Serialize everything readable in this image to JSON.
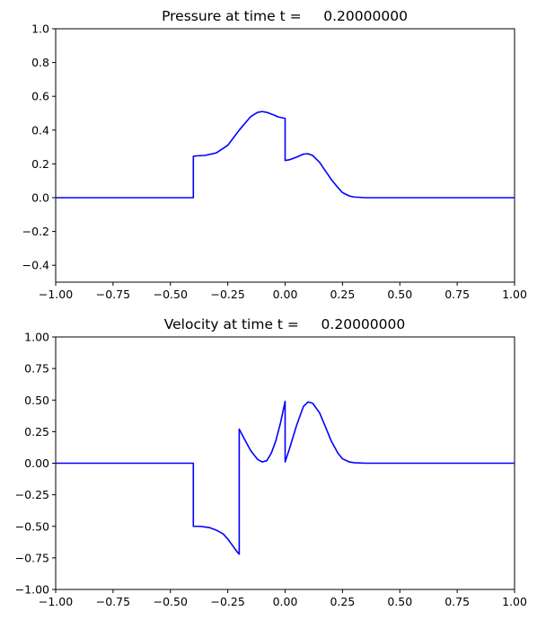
{
  "chart_data": [
    {
      "type": "line",
      "title": "Pressure at time t =     0.20000000",
      "xlabel": "",
      "ylabel": "",
      "xlim": [
        -1.0,
        1.0
      ],
      "ylim": [
        -0.5,
        1.0
      ],
      "xticks": [
        -1.0,
        -0.75,
        -0.5,
        -0.25,
        0.0,
        0.25,
        0.5,
        0.75,
        1.0
      ],
      "xtick_labels": [
        "−1.00",
        "−0.75",
        "−0.50",
        "−0.25",
        "0.00",
        "0.25",
        "0.50",
        "0.75",
        "1.00"
      ],
      "yticks": [
        -0.4,
        -0.2,
        0.0,
        0.2,
        0.4,
        0.6,
        0.8,
        1.0
      ],
      "ytick_labels": [
        "−0.4",
        "−0.2",
        "0.0",
        "0.2",
        "0.4",
        "0.6",
        "0.8",
        "1.0"
      ],
      "grid": false,
      "series_color": "#0000ff",
      "series": [
        {
          "x": [
            -1.0,
            -0.8,
            -0.6,
            -0.4,
            -0.4,
            -0.38,
            -0.35,
            -0.3,
            -0.25,
            -0.2,
            -0.15,
            -0.12,
            -0.1,
            -0.08,
            -0.05,
            -0.03,
            -0.01,
            0.0,
            0.0,
            0.02,
            0.05,
            0.08,
            0.1,
            0.12,
            0.15,
            0.18,
            0.2,
            0.23,
            0.25,
            0.28,
            0.3,
            0.35,
            0.4,
            0.5,
            0.75,
            1.0
          ],
          "y": [
            0.0,
            0.0,
            0.0,
            0.0,
            0.245,
            0.248,
            0.25,
            0.265,
            0.31,
            0.4,
            0.48,
            0.505,
            0.51,
            0.505,
            0.49,
            0.478,
            0.472,
            0.47,
            0.22,
            0.225,
            0.24,
            0.258,
            0.26,
            0.25,
            0.21,
            0.15,
            0.11,
            0.06,
            0.03,
            0.01,
            0.004,
            0.0,
            0.0,
            0.0,
            0.0,
            0.0
          ]
        }
      ]
    },
    {
      "type": "line",
      "title": "Velocity at time t =     0.20000000",
      "xlabel": "",
      "ylabel": "",
      "xlim": [
        -1.0,
        1.0
      ],
      "ylim": [
        -1.0,
        1.0
      ],
      "xticks": [
        -1.0,
        -0.75,
        -0.5,
        -0.25,
        0.0,
        0.25,
        0.5,
        0.75,
        1.0
      ],
      "xtick_labels": [
        "−1.00",
        "−0.75",
        "−0.50",
        "−0.25",
        "0.00",
        "0.25",
        "0.50",
        "0.75",
        "1.00"
      ],
      "yticks": [
        -1.0,
        -0.75,
        -0.5,
        -0.25,
        0.0,
        0.25,
        0.5,
        0.75,
        1.0
      ],
      "ytick_labels": [
        "−1.00",
        "−0.75",
        "−0.50",
        "−0.25",
        "0.00",
        "0.25",
        "0.50",
        "0.75",
        "1.00"
      ],
      "grid": false,
      "series_color": "#0000ff",
      "series": [
        {
          "x": [
            -1.0,
            -0.8,
            -0.6,
            -0.4,
            -0.4,
            -0.37,
            -0.33,
            -0.3,
            -0.27,
            -0.25,
            -0.23,
            -0.21,
            -0.2,
            -0.2,
            -0.18,
            -0.15,
            -0.12,
            -0.1,
            -0.08,
            -0.06,
            -0.04,
            -0.02,
            0.0,
            0.0,
            0.02,
            0.05,
            0.08,
            0.1,
            0.12,
            0.15,
            0.18,
            0.2,
            0.23,
            0.25,
            0.28,
            0.3,
            0.35,
            0.4,
            0.5,
            0.75,
            1.0
          ],
          "y": [
            0.0,
            0.0,
            0.0,
            0.0,
            -0.5,
            -0.5,
            -0.51,
            -0.53,
            -0.56,
            -0.6,
            -0.65,
            -0.7,
            -0.72,
            0.27,
            0.2,
            0.1,
            0.03,
            0.01,
            0.02,
            0.08,
            0.18,
            0.32,
            0.49,
            0.01,
            0.12,
            0.3,
            0.45,
            0.485,
            0.475,
            0.4,
            0.27,
            0.18,
            0.08,
            0.035,
            0.01,
            0.004,
            0.0,
            0.0,
            0.0,
            0.0,
            0.0
          ]
        }
      ]
    }
  ]
}
